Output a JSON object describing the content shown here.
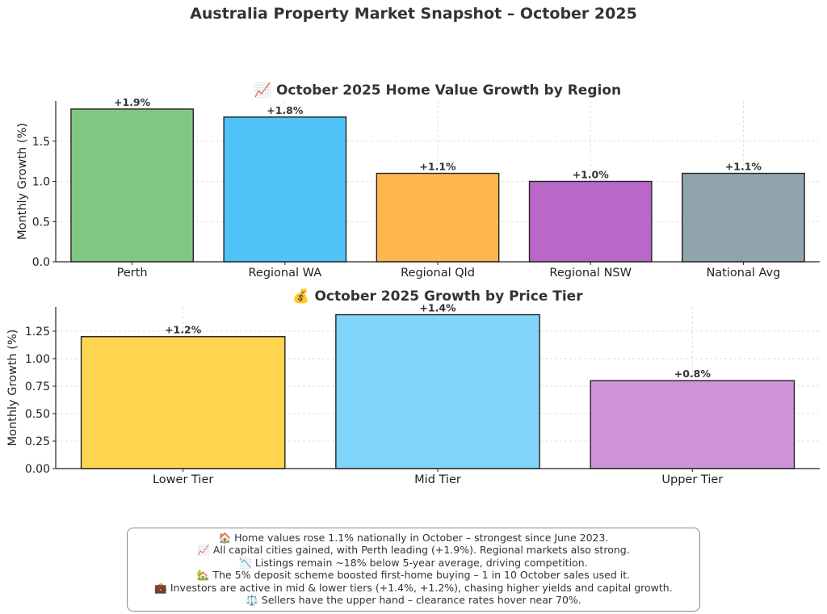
{
  "figure": {
    "title": "Australia Property Market Snapshot – October 2025"
  },
  "chart_data": [
    {
      "type": "bar",
      "title": "📈 October 2025 Home Value Growth by Region",
      "xlabel": "",
      "ylabel": "Monthly Growth (%)",
      "ylim": [
        0,
        2.0
      ],
      "yticks": [
        "0.0",
        "0.5",
        "1.0",
        "1.5"
      ],
      "grid": true,
      "categories": [
        "Perth",
        "Regional WA",
        "Regional Qld",
        "Regional NSW",
        "National Avg"
      ],
      "values": [
        1.9,
        1.8,
        1.1,
        1.0,
        1.1
      ],
      "data_labels": [
        "+1.9%",
        "+1.8%",
        "+1.1%",
        "+1.0%",
        "+1.1%"
      ],
      "colors": [
        "#81c784",
        "#4fc3f7",
        "#ffb74d",
        "#ba68c8",
        "#90a4ae"
      ]
    },
    {
      "type": "bar",
      "title": "💰 October 2025 Growth by Price Tier",
      "xlabel": "",
      "ylabel": "Monthly Growth (%)",
      "ylim": [
        0,
        1.47
      ],
      "yticks": [
        "0.00",
        "0.25",
        "0.50",
        "0.75",
        "1.00",
        "1.25"
      ],
      "grid": true,
      "categories": [
        "Lower Tier",
        "Mid Tier",
        "Upper Tier"
      ],
      "values": [
        1.2,
        1.4,
        0.8
      ],
      "data_labels": [
        "+1.2%",
        "+1.4%",
        "+0.8%"
      ],
      "colors": [
        "#ffd54f",
        "#81d4fa",
        "#ce93d8"
      ]
    }
  ],
  "notes": [
    "🏠 Home values rose 1.1% nationally in October – strongest since June 2023.",
    "📈 All capital cities gained, with Perth leading (+1.9%). Regional markets also strong.",
    "📉 Listings remain ~18% below 5-year average, driving competition.",
    "🏡 The 5% deposit scheme boosted first-home buying – 1 in 10 October sales used it.",
    "💼 Investors are active in mid & lower tiers (+1.4%, +1.2%), chasing higher yields and capital growth.",
    "⚖️ Sellers have the upper hand – clearance rates hover near 70%."
  ]
}
